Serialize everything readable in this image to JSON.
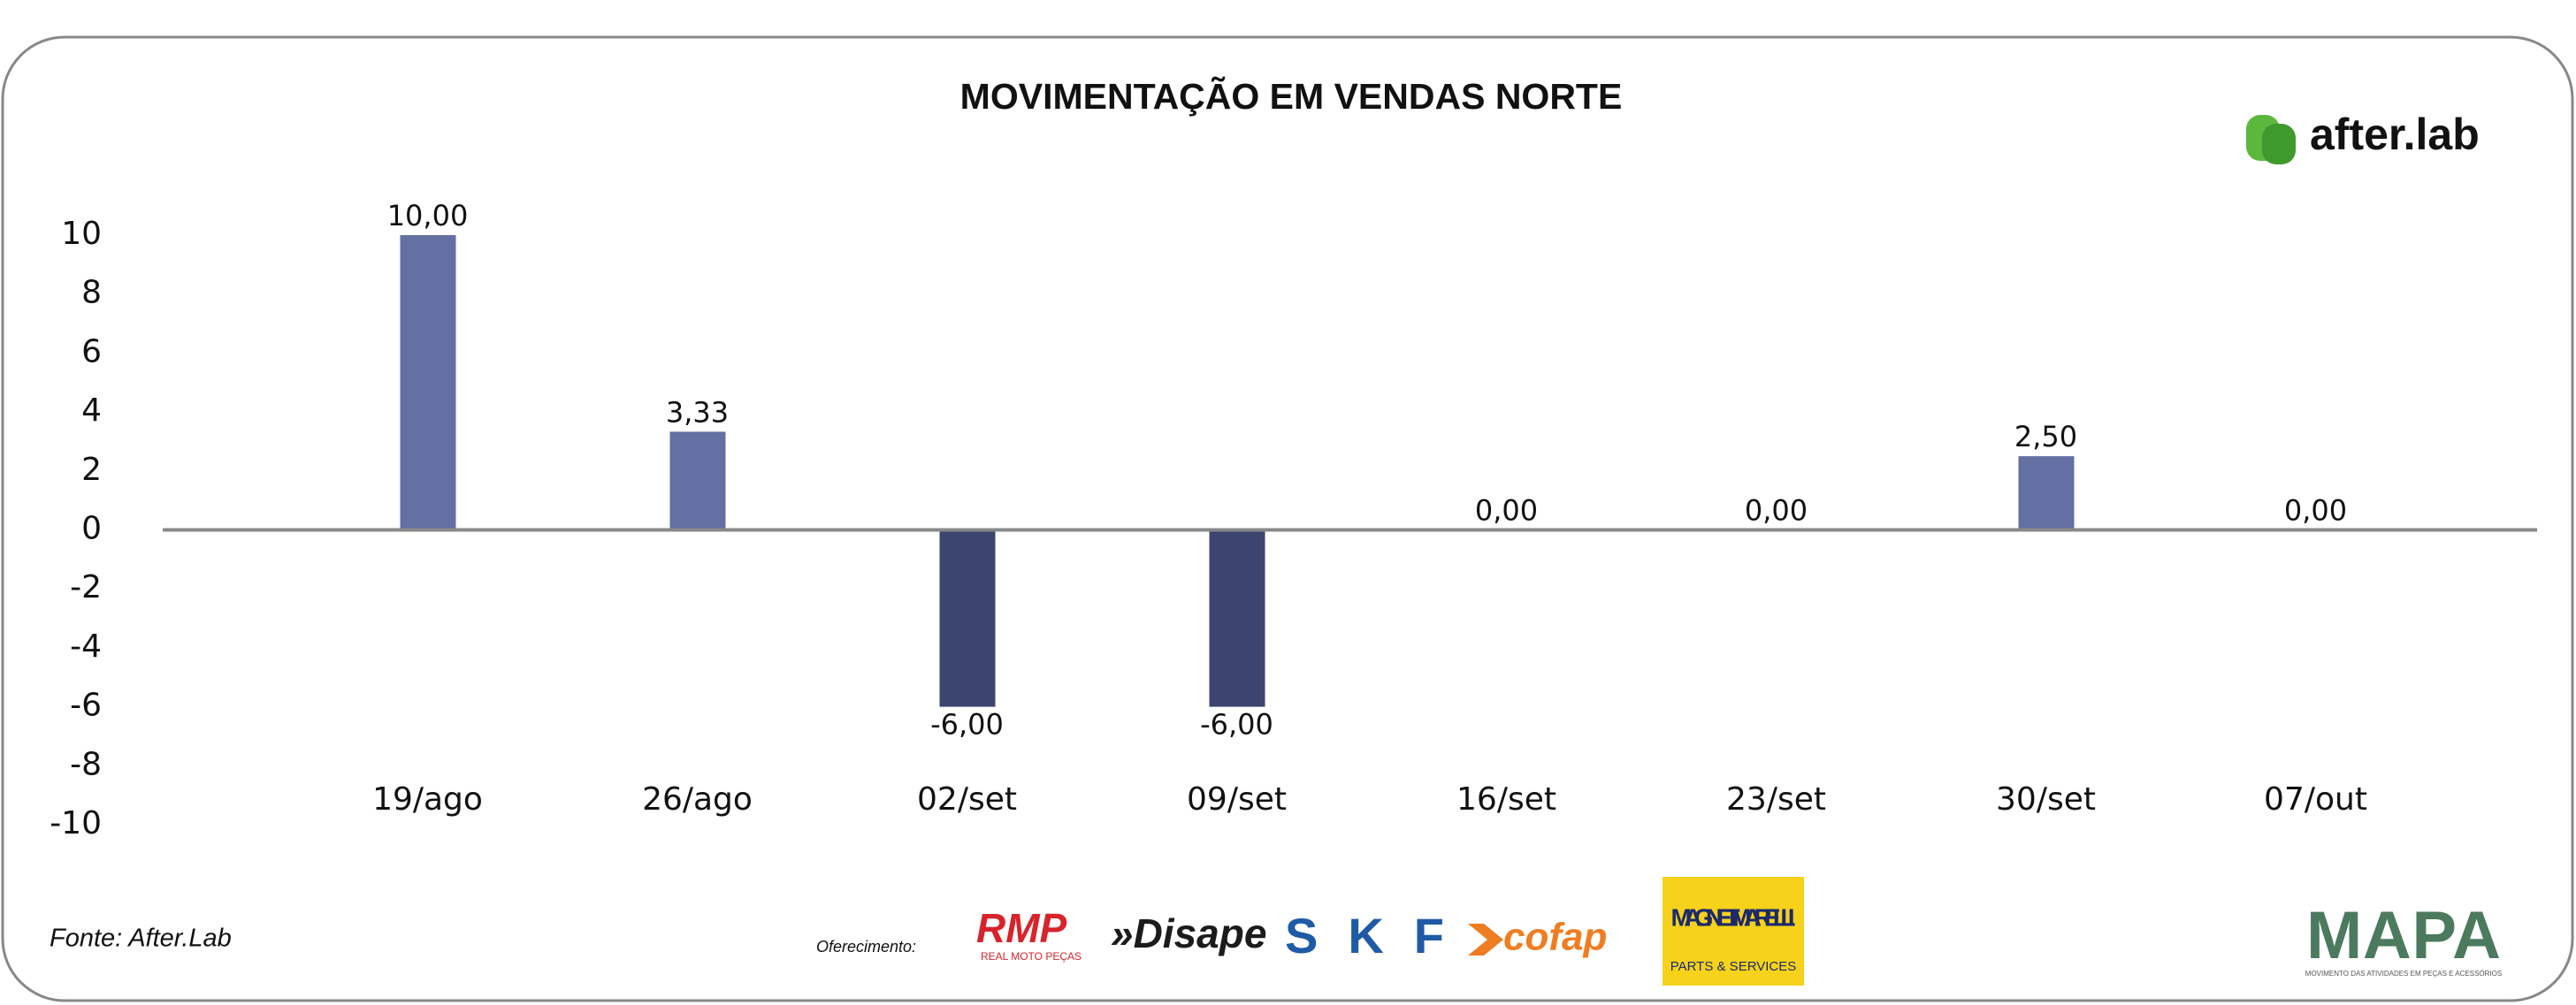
{
  "chart_data": {
    "type": "bar",
    "title": "MOVIMENTAÇÃO EM VENDAS NORTE",
    "categories": [
      "19/ago",
      "26/ago",
      "02/set",
      "09/set",
      "16/set",
      "23/set",
      "30/set",
      "07/out"
    ],
    "values": [
      10,
      3.33,
      -6,
      -6,
      0,
      0,
      2.5,
      0
    ],
    "value_labels": [
      "10,00",
      "3,33",
      "-6,00",
      "-6,00",
      "0,00",
      "0,00",
      "2,50",
      "0,00"
    ],
    "color": "#646fa3",
    "negative_color": "#3c4570",
    "ylim": [
      -10,
      10
    ],
    "yticks": [
      -10,
      -8,
      -6,
      -4,
      -2,
      0,
      2,
      4,
      6,
      8,
      10
    ],
    "grid": false
  },
  "footer": {
    "source": "Fonte: After.Lab",
    "sponsor_label": "Oferecimento:",
    "brand": "after.lab",
    "sponsors": [
      "RMP",
      "REAL MOTO PEÇAS",
      "»Disape",
      "SKF",
      "cofap",
      "MAGNETI MARELLI",
      "PARTS & SERVICES"
    ],
    "mapa": "MAPA",
    "mapa_tagline": "MOVIMENTO DAS ATIVIDADES EM PEÇAS E ACESSÓRIOS"
  }
}
